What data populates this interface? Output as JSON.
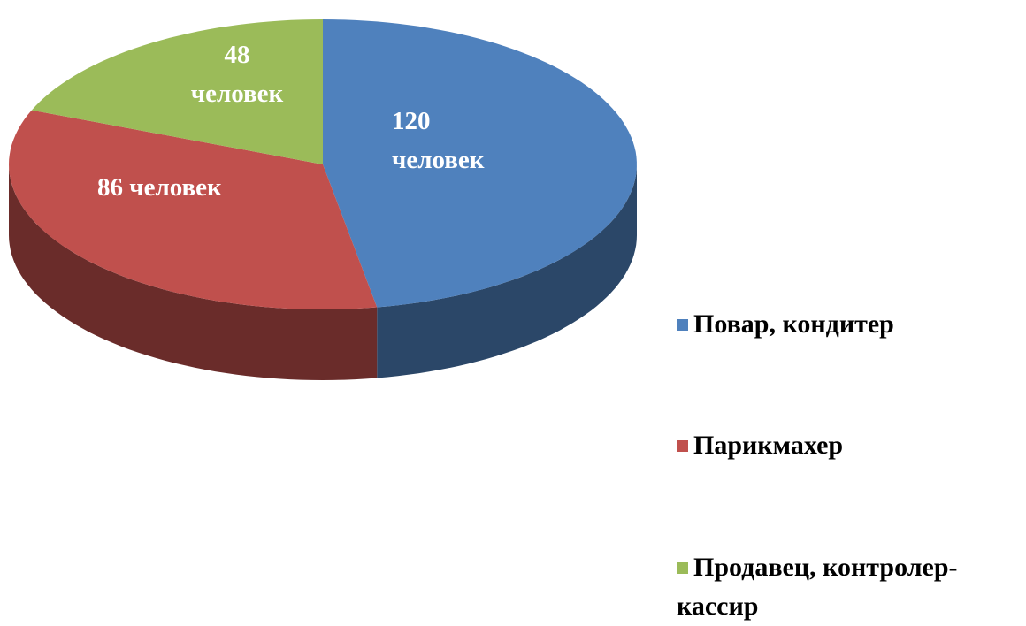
{
  "chart_data": {
    "type": "pie3d",
    "categories": [
      "Повар, кондитер",
      "Парикмахер",
      "Продавец, контролер-кассир"
    ],
    "values": [
      120,
      86,
      48
    ],
    "value_labels": [
      "120 человек",
      "86 человек",
      "48 человек"
    ],
    "colors": [
      "#4f81bd",
      "#c0504d",
      "#9bbb59"
    ],
    "legend": "right"
  }
}
